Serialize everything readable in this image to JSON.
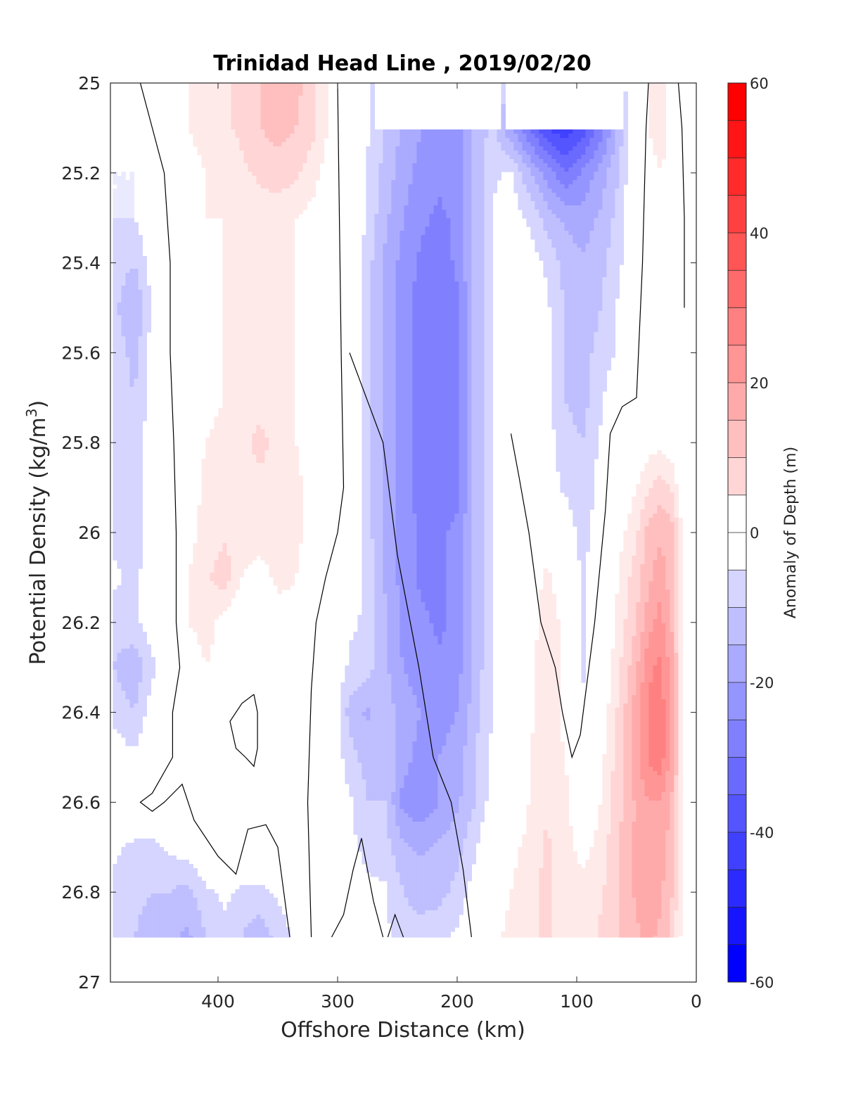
{
  "chart_data": {
    "type": "heatmap",
    "title": "Trinidad Head Line , 2019/02/20",
    "xlabel": "Offshore Distance (km)",
    "ylabel_main": "Potential Density (kg/m",
    "ylabel_sup": "3",
    "ylabel_close": ")",
    "colorbar_label": "Anomaly of Depth (m)",
    "xlim": [
      490,
      0
    ],
    "x_reversed": true,
    "ylim": [
      25,
      27
    ],
    "y_reversed": true,
    "x_ticks": [
      400,
      300,
      200,
      100,
      0
    ],
    "y_ticks": [
      25,
      25.2,
      25.4,
      25.6,
      25.8,
      26,
      26.2,
      26.4,
      26.6,
      26.8,
      27
    ],
    "y_tick_labels": [
      "25",
      "25.2",
      "25.4",
      "25.6",
      "25.8",
      "26",
      "26.2",
      "26.4",
      "26.6",
      "26.8",
      "27"
    ],
    "colorbar": {
      "range": [
        -60,
        60
      ],
      "step": 5,
      "ticks": [
        60,
        40,
        20,
        0,
        -20,
        -40,
        -60
      ],
      "colors": [
        "#0000ff",
        "#1515ff",
        "#2b2bff",
        "#4040ff",
        "#5555ff",
        "#6a6aff",
        "#8080ff",
        "#9595ff",
        "#aaaaff",
        "#bfbfff",
        "#d5d5ff",
        "#eaeaff",
        "#ffffff",
        "#ffffff",
        "#ffeaea",
        "#ffd5d5",
        "#ffbfbf",
        "#ffaaaa",
        "#ff9595",
        "#ff8080",
        "#ff6a6a",
        "#ff5555",
        "#ff4040",
        "#ff2b2b",
        "#ff1515",
        "#ff0000"
      ]
    },
    "data_bounds": {
      "x": [
        488,
        10
      ],
      "y": [
        25,
        26.9
      ]
    },
    "no_data_regions": [
      {
        "x": [
          270,
          165
        ],
        "y": [
          25,
          25.1
        ]
      },
      {
        "x": [
          160,
          60
        ],
        "y": [
          25,
          25.1
        ]
      }
    ],
    "grid_x": [
      488,
      470,
      455,
      440,
      425,
      410,
      395,
      380,
      365,
      350,
      335,
      320,
      305,
      290,
      275,
      260,
      245,
      230,
      215,
      200,
      185,
      170,
      155,
      140,
      125,
      110,
      95,
      80,
      65,
      50,
      40,
      30,
      20,
      10
    ],
    "grid_y": [
      25,
      25.1,
      25.2,
      25.3,
      25.4,
      25.5,
      25.6,
      25.7,
      25.8,
      25.9,
      26,
      26.1,
      26.2,
      26.3,
      26.4,
      26.5,
      26.6,
      26.7,
      26.8,
      26.9
    ],
    "anomaly_m": [
      [
        -2,
        -2,
        0,
        4,
        10,
        12,
        14,
        16,
        20,
        24,
        22,
        16,
        8,
        2,
        -4,
        -10,
        -14,
        -16,
        -18,
        -16,
        -10,
        -6,
        -5,
        -6,
        -10,
        -14,
        -20,
        -18,
        -10,
        4,
        10,
        12,
        8,
        -3
      ],
      [
        -4,
        -4,
        0,
        4,
        10,
        12,
        14,
        16,
        20,
        22,
        20,
        16,
        8,
        2,
        -4,
        -10,
        -16,
        -20,
        -24,
        -22,
        -14,
        -8,
        -20,
        -30,
        -40,
        -44,
        -38,
        -28,
        -14,
        4,
        10,
        12,
        8,
        2
      ],
      [
        -5,
        -5,
        0,
        4,
        8,
        10,
        12,
        14,
        16,
        18,
        16,
        12,
        6,
        2,
        -6,
        -12,
        -18,
        -22,
        -24,
        -22,
        -14,
        -6,
        -4,
        -14,
        -22,
        -30,
        -24,
        -18,
        -10,
        2,
        8,
        10,
        8,
        2
      ],
      [
        -5,
        -5,
        0,
        4,
        8,
        10,
        10,
        12,
        12,
        12,
        10,
        8,
        4,
        2,
        -6,
        -14,
        -20,
        -24,
        -26,
        -24,
        -14,
        -4,
        -2,
        -6,
        -12,
        -16,
        -18,
        -14,
        -8,
        2,
        6,
        10,
        8,
        2
      ],
      [
        -6,
        -10,
        -2,
        2,
        6,
        8,
        10,
        10,
        10,
        10,
        10,
        8,
        4,
        2,
        -8,
        -16,
        -22,
        -26,
        -28,
        -24,
        -14,
        -4,
        -2,
        -2,
        -6,
        -12,
        -14,
        -12,
        -6,
        0,
        6,
        10,
        6,
        2
      ],
      [
        -8,
        -16,
        -4,
        2,
        6,
        8,
        10,
        10,
        10,
        10,
        10,
        6,
        4,
        2,
        -8,
        -16,
        -22,
        -28,
        -30,
        -26,
        -14,
        -4,
        -2,
        -2,
        -4,
        -10,
        -14,
        -10,
        -4,
        0,
        6,
        10,
        4,
        0
      ],
      [
        -6,
        -12,
        -2,
        2,
        6,
        8,
        10,
        10,
        10,
        10,
        10,
        6,
        4,
        2,
        -8,
        -16,
        -22,
        -28,
        -28,
        -26,
        -14,
        -4,
        -2,
        -2,
        -4,
        -10,
        -12,
        -8,
        -4,
        0,
        6,
        8,
        4,
        0
      ],
      [
        -6,
        -10,
        -2,
        2,
        6,
        8,
        10,
        12,
        14,
        12,
        10,
        6,
        4,
        2,
        -8,
        -16,
        -22,
        -28,
        -28,
        -26,
        -14,
        -4,
        -2,
        -2,
        -4,
        -10,
        -12,
        -6,
        0,
        2,
        6,
        8,
        4,
        0
      ],
      [
        -6,
        -8,
        -2,
        2,
        6,
        10,
        12,
        14,
        16,
        14,
        10,
        6,
        4,
        2,
        -8,
        -16,
        -22,
        -28,
        -30,
        -26,
        -14,
        -4,
        -2,
        0,
        -2,
        -8,
        -10,
        -4,
        2,
        4,
        8,
        8,
        6,
        0
      ],
      [
        -6,
        -8,
        -2,
        2,
        6,
        12,
        14,
        14,
        14,
        14,
        12,
        6,
        4,
        2,
        -8,
        -16,
        -22,
        -28,
        -30,
        -26,
        -14,
        -4,
        -2,
        0,
        -2,
        -6,
        -10,
        -2,
        4,
        10,
        14,
        18,
        14,
        4
      ],
      [
        -6,
        -8,
        -2,
        2,
        8,
        12,
        14,
        14,
        14,
        14,
        12,
        6,
        2,
        0,
        -8,
        -16,
        -22,
        -26,
        -26,
        -24,
        -14,
        -4,
        -2,
        2,
        6,
        0,
        -8,
        0,
        8,
        14,
        22,
        24,
        22,
        6
      ],
      [
        -4,
        -6,
        -2,
        2,
        10,
        14,
        18,
        10,
        6,
        12,
        10,
        4,
        0,
        -2,
        -6,
        -16,
        -22,
        -26,
        -26,
        -24,
        -14,
        -4,
        0,
        4,
        12,
        4,
        -6,
        2,
        10,
        18,
        24,
        28,
        22,
        6
      ],
      [
        -8,
        -6,
        -2,
        2,
        10,
        12,
        8,
        4,
        4,
        6,
        8,
        4,
        0,
        -4,
        -6,
        -14,
        -22,
        -24,
        -26,
        -24,
        -14,
        -4,
        0,
        6,
        14,
        8,
        -6,
        2,
        12,
        20,
        28,
        32,
        24,
        6
      ],
      [
        -10,
        -14,
        -6,
        0,
        6,
        10,
        8,
        2,
        2,
        4,
        6,
        2,
        0,
        -6,
        -8,
        -14,
        -20,
        -22,
        -24,
        -22,
        -14,
        -4,
        0,
        8,
        14,
        8,
        -6,
        4,
        14,
        24,
        34,
        36,
        28,
        6
      ],
      [
        -6,
        -10,
        -2,
        0,
        6,
        8,
        6,
        2,
        2,
        4,
        6,
        2,
        0,
        -12,
        -16,
        -12,
        -18,
        -20,
        -22,
        -20,
        -12,
        -4,
        0,
        8,
        14,
        8,
        -4,
        6,
        16,
        28,
        36,
        38,
        28,
        6
      ],
      [
        -2,
        -4,
        0,
        0,
        6,
        8,
        6,
        2,
        2,
        4,
        6,
        2,
        0,
        -8,
        -12,
        -10,
        -18,
        -22,
        -20,
        -18,
        -10,
        -4,
        0,
        10,
        14,
        10,
        0,
        8,
        18,
        28,
        36,
        38,
        28,
        6
      ],
      [
        0,
        0,
        0,
        0,
        4,
        6,
        6,
        4,
        2,
        4,
        6,
        2,
        0,
        -4,
        -10,
        -10,
        -22,
        -24,
        -20,
        -16,
        -10,
        -2,
        2,
        10,
        14,
        12,
        4,
        10,
        18,
        26,
        30,
        30,
        24,
        6
      ],
      [
        -4,
        -6,
        -6,
        -4,
        -2,
        2,
        2,
        2,
        0,
        0,
        -2,
        0,
        0,
        -4,
        -6,
        -8,
        -14,
        -16,
        -14,
        -12,
        -6,
        4,
        8,
        12,
        16,
        12,
        8,
        12,
        20,
        26,
        28,
        28,
        22,
        6
      ],
      [
        -6,
        -8,
        -10,
        -10,
        -12,
        -6,
        -4,
        -6,
        -6,
        -4,
        -2,
        0,
        -2,
        -4,
        -4,
        -4,
        -10,
        -12,
        -12,
        -8,
        -2,
        6,
        10,
        14,
        16,
        12,
        12,
        14,
        20,
        26,
        28,
        26,
        20,
        6
      ],
      [
        -6,
        -10,
        -14,
        -14,
        -16,
        -10,
        -6,
        -10,
        -14,
        -8,
        -4,
        0,
        -2,
        -2,
        -4,
        -4,
        -8,
        -8,
        -6,
        -4,
        0,
        8,
        12,
        14,
        16,
        12,
        12,
        16,
        20,
        24,
        26,
        24,
        18,
        6
      ]
    ],
    "zero_contours": [
      [
        [
          465,
          25
        ],
        [
          455,
          25.1
        ],
        [
          445,
          25.2
        ],
        [
          440,
          25.4
        ],
        [
          440,
          25.6
        ],
        [
          437,
          25.8
        ],
        [
          435,
          26
        ],
        [
          435,
          26.2
        ],
        [
          432,
          26.3
        ],
        [
          438,
          26.4
        ],
        [
          438,
          26.5
        ],
        [
          455,
          26.58
        ],
        [
          465,
          26.6
        ],
        [
          455,
          26.62
        ],
        [
          445,
          26.6
        ],
        [
          430,
          26.56
        ],
        [
          420,
          26.64
        ],
        [
          400,
          26.72
        ],
        [
          385,
          26.76
        ],
        [
          375,
          26.66
        ],
        [
          360,
          26.65
        ],
        [
          350,
          26.7
        ],
        [
          345,
          26.8
        ],
        [
          340,
          26.9
        ]
      ],
      [
        [
          300,
          25
        ],
        [
          298,
          25.4
        ],
        [
          297,
          25.6
        ],
        [
          295,
          25.9
        ],
        [
          300,
          26
        ],
        [
          310,
          26.1
        ],
        [
          318,
          26.2
        ],
        [
          322,
          26.35
        ],
        [
          325,
          26.6
        ],
        [
          323,
          26.8
        ],
        [
          322,
          26.9
        ]
      ],
      [
        [
          370,
          26.36
        ],
        [
          380,
          26.38
        ],
        [
          390,
          26.42
        ],
        [
          385,
          26.48
        ],
        [
          377,
          26.5
        ],
        [
          370,
          26.52
        ],
        [
          367,
          26.48
        ],
        [
          367,
          26.4
        ],
        [
          370,
          26.36
        ]
      ],
      [
        [
          262,
          26.9
        ],
        [
          270,
          26.82
        ],
        [
          280,
          26.68
        ],
        [
          287,
          26.75
        ],
        [
          295,
          26.85
        ],
        [
          305,
          26.9
        ]
      ],
      [
        [
          258,
          26.9
        ],
        [
          252,
          26.85
        ],
        [
          245,
          26.9
        ]
      ],
      [
        [
          188,
          26.9
        ],
        [
          195,
          26.75
        ],
        [
          205,
          26.6
        ],
        [
          220,
          26.5
        ],
        [
          232,
          26.3
        ],
        [
          250,
          26.05
        ],
        [
          262,
          25.8
        ],
        [
          290,
          25.6
        ]
      ],
      [
        [
          155,
          25.78
        ],
        [
          148,
          25.88
        ],
        [
          140,
          26
        ],
        [
          130,
          26.2
        ],
        [
          118,
          26.3
        ],
        [
          112,
          26.4
        ],
        [
          104,
          26.5
        ],
        [
          97,
          26.45
        ],
        [
          85,
          26.2
        ],
        [
          76,
          25.95
        ],
        [
          72,
          25.78
        ],
        [
          62,
          25.72
        ],
        [
          50,
          25.7
        ],
        [
          45,
          25.4
        ],
        [
          42,
          25.1
        ],
        [
          40,
          25
        ]
      ],
      [
        [
          15,
          25
        ],
        [
          12,
          25.1
        ],
        [
          10,
          25.3
        ],
        [
          10,
          25.5
        ]
      ]
    ]
  }
}
